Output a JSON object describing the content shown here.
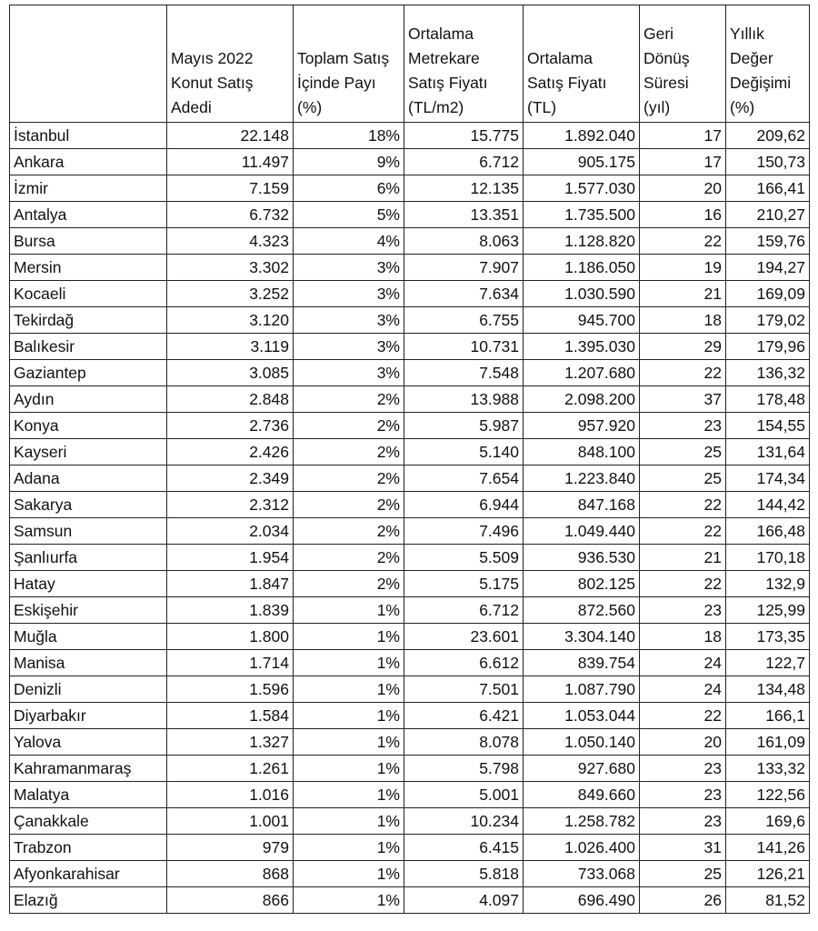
{
  "table": {
    "header": [
      [
        "Mayıs 2022",
        "Konut Satış",
        "Adedi"
      ],
      [
        "Toplam Satış",
        "İçinde Payı",
        "(%)"
      ],
      [
        "Ortalama",
        "Metrekare",
        "Satış Fiyatı",
        "(TL/m2)"
      ],
      [
        "Ortalama",
        "Satış Fiyatı",
        "(TL)"
      ],
      [
        "Geri",
        "Dönüş",
        "Süresi",
        "(yıl)"
      ],
      [
        "Yıllık",
        "Değer",
        "Değişimi",
        "(%)"
      ]
    ],
    "rows": [
      [
        "İstanbul",
        "22.148",
        "18%",
        "15.775",
        "1.892.040",
        "17",
        "209,62"
      ],
      [
        "Ankara",
        "11.497",
        "9%",
        "6.712",
        "905.175",
        "17",
        "150,73"
      ],
      [
        "İzmir",
        "7.159",
        "6%",
        "12.135",
        "1.577.030",
        "20",
        "166,41"
      ],
      [
        "Antalya",
        "6.732",
        "5%",
        "13.351",
        "1.735.500",
        "16",
        "210,27"
      ],
      [
        "Bursa",
        "4.323",
        "4%",
        "8.063",
        "1.128.820",
        "22",
        "159,76"
      ],
      [
        "Mersin",
        "3.302",
        "3%",
        "7.907",
        "1.186.050",
        "19",
        "194,27"
      ],
      [
        "Kocaeli",
        "3.252",
        "3%",
        "7.634",
        "1.030.590",
        "21",
        "169,09"
      ],
      [
        "Tekirdağ",
        "3.120",
        "3%",
        "6.755",
        "945.700",
        "18",
        "179,02"
      ],
      [
        "Balıkesir",
        "3.119",
        "3%",
        "10.731",
        "1.395.030",
        "29",
        "179,96"
      ],
      [
        "Gaziantep",
        "3.085",
        "3%",
        "7.548",
        "1.207.680",
        "22",
        "136,32"
      ],
      [
        "Aydın",
        "2.848",
        "2%",
        "13.988",
        "2.098.200",
        "37",
        "178,48"
      ],
      [
        "Konya",
        "2.736",
        "2%",
        "5.987",
        "957.920",
        "23",
        "154,55"
      ],
      [
        "Kayseri",
        "2.426",
        "2%",
        "5.140",
        "848.100",
        "25",
        "131,64"
      ],
      [
        "Adana",
        "2.349",
        "2%",
        "7.654",
        "1.223.840",
        "25",
        "174,34"
      ],
      [
        "Sakarya",
        "2.312",
        "2%",
        "6.944",
        "847.168",
        "22",
        "144,42"
      ],
      [
        "Samsun",
        "2.034",
        "2%",
        "7.496",
        "1.049.440",
        "22",
        "166,48"
      ],
      [
        "Şanlıurfa",
        "1.954",
        "2%",
        "5.509",
        "936.530",
        "21",
        "170,18"
      ],
      [
        "Hatay",
        "1.847",
        "2%",
        "5.175",
        "802.125",
        "22",
        "132,9"
      ],
      [
        "Eskişehir",
        "1.839",
        "1%",
        "6.712",
        "872.560",
        "23",
        "125,99"
      ],
      [
        "Muğla",
        "1.800",
        "1%",
        "23.601",
        "3.304.140",
        "18",
        "173,35"
      ],
      [
        "Manisa",
        "1.714",
        "1%",
        "6.612",
        "839.754",
        "24",
        "122,7"
      ],
      [
        "Denizli",
        "1.596",
        "1%",
        "7.501",
        "1.087.790",
        "24",
        "134,48"
      ],
      [
        "Diyarbakır",
        "1.584",
        "1%",
        "6.421",
        "1.053.044",
        "22",
        "166,1"
      ],
      [
        "Yalova",
        "1.327",
        "1%",
        "8.078",
        "1.050.140",
        "20",
        "161,09"
      ],
      [
        "Kahramanmaraş",
        "1.261",
        "1%",
        "5.798",
        "927.680",
        "23",
        "133,32"
      ],
      [
        "Malatya",
        "1.016",
        "1%",
        "5.001",
        "849.660",
        "23",
        "122,56"
      ],
      [
        "Çanakkale",
        "1.001",
        "1%",
        "10.234",
        "1.258.782",
        "23",
        "169,6"
      ],
      [
        "Trabzon",
        "979",
        "1%",
        "6.415",
        "1.026.400",
        "31",
        "141,26"
      ],
      [
        "Afyonkarahisar",
        "868",
        "1%",
        "5.818",
        "733.068",
        "25",
        "126,21"
      ],
      [
        "Elazığ",
        "866",
        "1%",
        "4.097",
        "696.490",
        "26",
        "81,52"
      ]
    ]
  }
}
